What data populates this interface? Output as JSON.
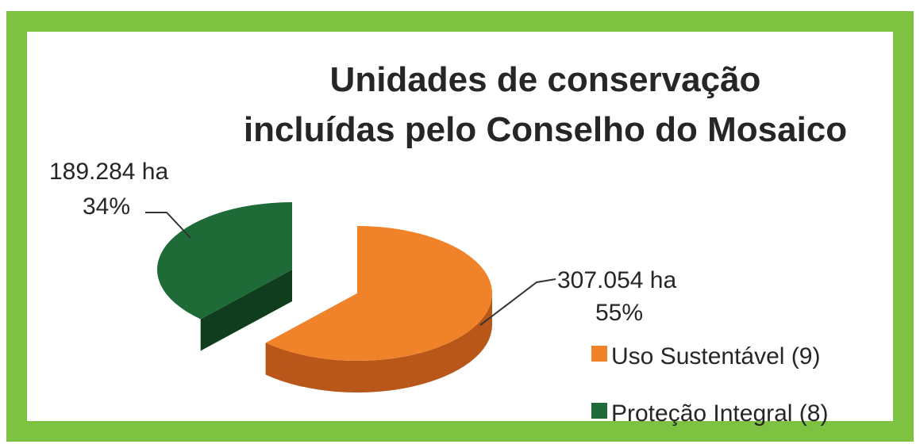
{
  "chart_data": {
    "type": "pie",
    "title_lines": [
      "Unidades de conservação",
      "incluídas pelo Conselho do Mosaico"
    ],
    "slices": [
      {
        "legend": "Uso Sustentável (9)",
        "value_label": "307.054 ha",
        "percent_label": "55%",
        "value": 307054,
        "color": "#f0832a",
        "side_color": "#b9561a"
      },
      {
        "legend": "Proteção Integral (8)",
        "value_label": "189.284 ha",
        "percent_label": "34%",
        "value": 189284,
        "color": "#1f6b38",
        "side_color": "#0f3d1e"
      }
    ],
    "legend_position": "right-bottom",
    "style": "3d-exploded"
  },
  "colors": {
    "border": "#7ec241",
    "text": "#262626"
  }
}
